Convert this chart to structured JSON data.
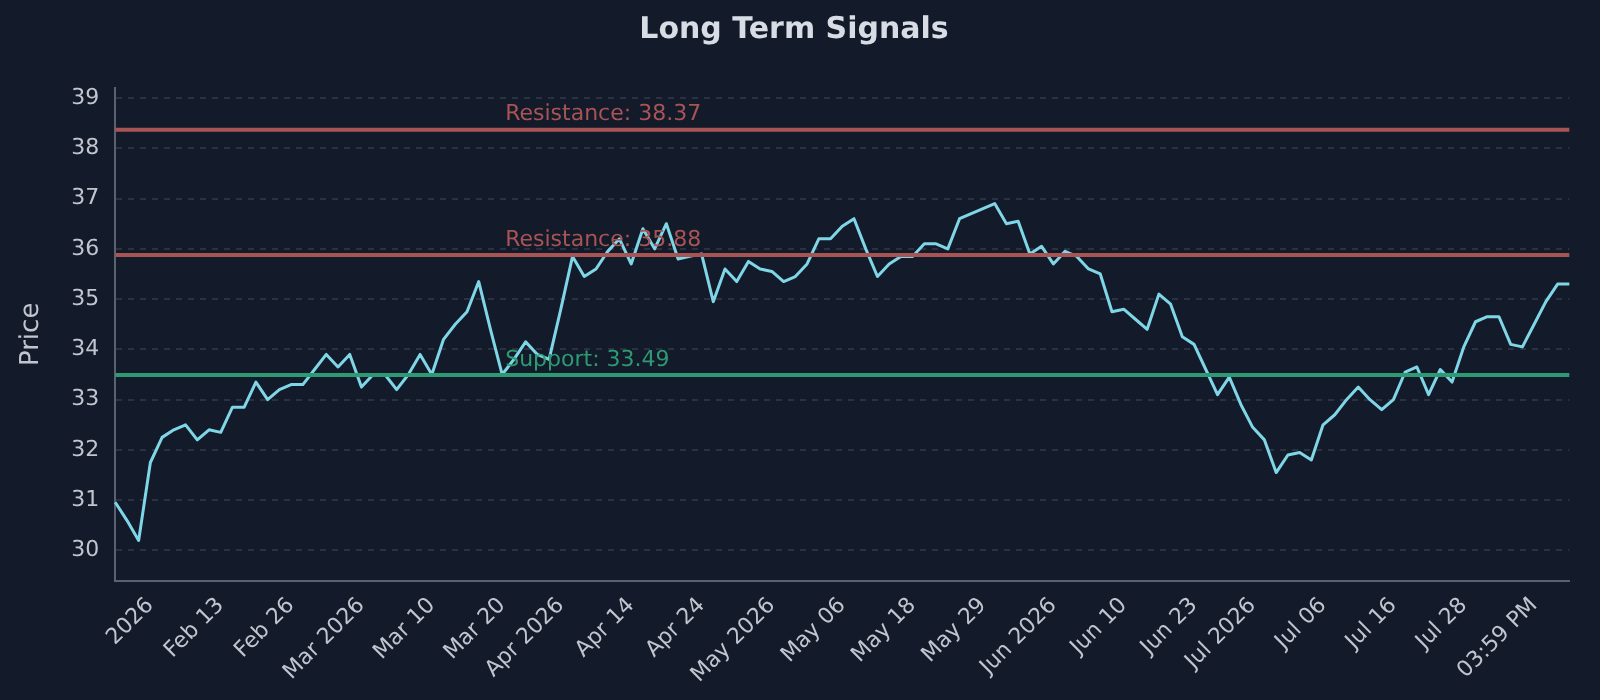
{
  "chart_data": {
    "type": "line",
    "title": "Long Term Signals",
    "ylabel": "Price",
    "categories": [
      null,
      null,
      null,
      "2026",
      null,
      null,
      null,
      null,
      null,
      "Feb 13",
      null,
      null,
      null,
      null,
      null,
      "Feb 26",
      null,
      null,
      null,
      null,
      null,
      "Mar 2026",
      null,
      null,
      null,
      null,
      null,
      "Mar 10",
      null,
      null,
      null,
      null,
      null,
      "Mar 20",
      null,
      null,
      null,
      null,
      "Apr 2026",
      null,
      null,
      null,
      null,
      null,
      "Apr 14",
      null,
      null,
      null,
      null,
      null,
      "Apr 24",
      null,
      null,
      null,
      null,
      null,
      "May 2026",
      null,
      null,
      null,
      null,
      null,
      "May 06",
      null,
      null,
      null,
      null,
      null,
      "May 18",
      null,
      null,
      null,
      null,
      null,
      "May 29",
      null,
      null,
      null,
      null,
      null,
      "Jun 2026",
      null,
      null,
      null,
      null,
      null,
      "Jun 10",
      null,
      null,
      null,
      null,
      null,
      "Jun 23",
      null,
      null,
      null,
      null,
      "Jul 2026",
      null,
      null,
      null,
      null,
      null,
      "Jul 06",
      null,
      null,
      null,
      null,
      null,
      "Jul 16",
      null,
      null,
      null,
      null,
      null,
      "Jul 28",
      null,
      null,
      null,
      null,
      null,
      "03:59 PM",
      null,
      null,
      null
    ],
    "series": [
      {
        "color": "#7fd6e6",
        "values": [
          30.96,
          30.6,
          30.2,
          31.75,
          32.25,
          32.4,
          32.5,
          32.2,
          32.4,
          32.35,
          32.85,
          32.85,
          33.35,
          33.0,
          33.2,
          33.3,
          33.3,
          33.6,
          33.9,
          33.65,
          33.9,
          33.25,
          33.5,
          33.5,
          33.2,
          33.5,
          33.9,
          33.5,
          34.2,
          34.5,
          34.75,
          35.35,
          34.4,
          33.5,
          33.8,
          34.15,
          33.9,
          33.8,
          34.8,
          35.85,
          35.45,
          35.6,
          35.95,
          36.2,
          35.7,
          36.4,
          36.0,
          36.5,
          35.8,
          35.85,
          35.9,
          34.95,
          35.6,
          35.35,
          35.75,
          35.6,
          35.55,
          35.35,
          35.45,
          35.7,
          36.2,
          36.2,
          36.45,
          36.6,
          36.0,
          35.45,
          35.7,
          35.85,
          35.85,
          36.1,
          36.1,
          36.0,
          36.6,
          36.7,
          36.8,
          36.9,
          36.5,
          36.55,
          35.9,
          36.05,
          35.7,
          35.95,
          35.85,
          35.6,
          35.5,
          34.75,
          34.8,
          34.6,
          34.4,
          35.1,
          34.9,
          34.25,
          34.1,
          33.6,
          33.1,
          33.45,
          32.9,
          32.45,
          32.2,
          31.55,
          31.9,
          31.95,
          31.8,
          32.5,
          32.7,
          33.0,
          33.25,
          33.0,
          32.8,
          33.0,
          33.55,
          33.65,
          33.1,
          33.6,
          33.35,
          34.05,
          34.55,
          34.65,
          34.65,
          34.1,
          34.05,
          34.5,
          34.95,
          35.3,
          35.3
        ]
      }
    ],
    "ylim": [
      29.4,
      39.2
    ],
    "yticks": [
      30,
      31,
      32,
      33,
      34,
      35,
      36,
      37,
      38,
      39
    ],
    "ref_lines": [
      {
        "axis": "y",
        "value": 38.37,
        "label": "Resistance: 38.37",
        "color": "#a85454"
      },
      {
        "axis": "y",
        "value": 35.88,
        "label": "Resistance: 35.88",
        "color": "#a85454"
      },
      {
        "axis": "y",
        "value": 33.49,
        "label": "Support: 33.49",
        "color": "#2e9a74"
      }
    ],
    "grid": "y",
    "legend": false,
    "marker": "none",
    "line_style": "solid"
  }
}
